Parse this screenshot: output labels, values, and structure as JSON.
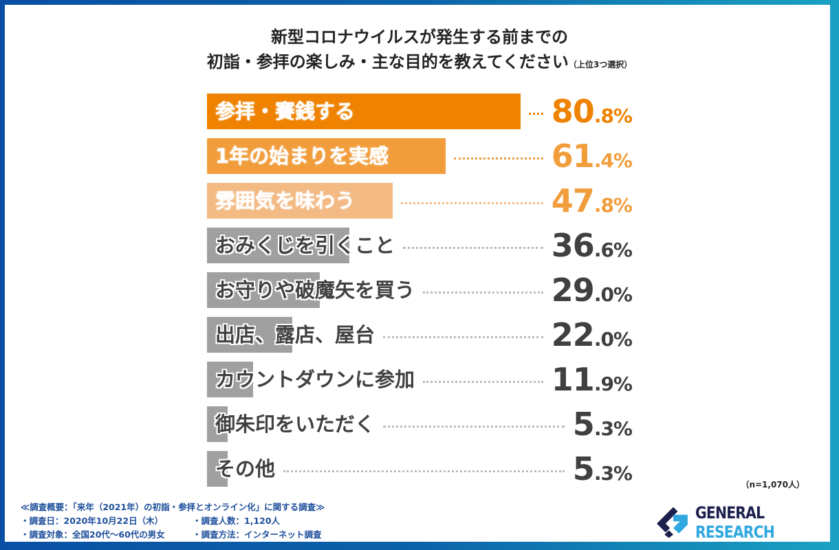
{
  "chart_data": {
    "type": "bar",
    "orientation": "horizontal",
    "title_line1": "新型コロナウイルスが発生する前までの",
    "title_line2": "初詣・参拝の楽しみ・主な目的を教えてください",
    "title_note": "（上位3つ選択）",
    "categories": [
      "参拝・賽銭する",
      "1年の始まりを実感",
      "雰囲気を味わう",
      "おみくじを引くこと",
      "お守りや破魔矢を買う",
      "出店、露店、屋台",
      "カウントダウンに参加",
      "御朱印をいただく",
      "その他"
    ],
    "values": [
      80.8,
      61.4,
      47.8,
      36.6,
      29.0,
      22.0,
      11.9,
      5.3,
      5.3
    ],
    "value_labels": [
      [
        "80",
        ".8%"
      ],
      [
        "61",
        ".4%"
      ],
      [
        "47",
        ".8%"
      ],
      [
        "36",
        ".6%"
      ],
      [
        "29",
        ".0%"
      ],
      [
        "22",
        ".0%"
      ],
      [
        "11",
        ".9%"
      ],
      [
        "5",
        ".3%"
      ],
      [
        "5",
        ".3%"
      ]
    ],
    "unit": "%",
    "bar_colors": [
      "#ef8200",
      "#f19d3c",
      "#f3ba84",
      "#a0a0a0",
      "#a0a0a0",
      "#a0a0a0",
      "#a0a0a0",
      "#a0a0a0",
      "#a0a0a0"
    ],
    "value_colors": [
      "#ef8200",
      "#f19d3c",
      "#f19d3c",
      "#404040",
      "#404040",
      "#404040",
      "#404040",
      "#404040",
      "#404040"
    ],
    "grid": false,
    "legend": "none",
    "sample_note": "（n=1,070人）"
  },
  "footer": {
    "survey_title": "≪調査概要：「来年（2021年）の初詣・参拝とオンライン化」に関する調査≫",
    "items": [
      "・調査日：2020年10月22日（木）",
      "・調査人数：1,120人",
      "・調査対象：全国20代〜60代の男女",
      "・調査方法：インターネット調査"
    ]
  },
  "logo": {
    "word1": "GENERAL",
    "word2": "RESEARCH"
  },
  "colors": {
    "frame_left": "#0a4fa3",
    "frame_right": "#1aa2c2",
    "footer_text": "#1d4e9c"
  }
}
